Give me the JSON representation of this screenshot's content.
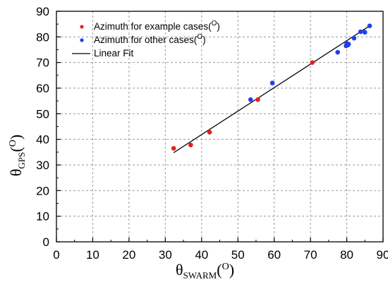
{
  "chart_data": {
    "type": "scatter",
    "xlim": [
      0,
      90
    ],
    "ylim": [
      0,
      90
    ],
    "x_ticks": [
      0,
      10,
      20,
      30,
      40,
      50,
      60,
      70,
      80,
      90
    ],
    "y_ticks": [
      0,
      10,
      20,
      30,
      40,
      50,
      60,
      70,
      80,
      90
    ],
    "x_tick_labels": [
      "0",
      "10",
      "20",
      "30",
      "40",
      "50",
      "60",
      "70",
      "80",
      "90"
    ],
    "y_tick_labels": [
      "0",
      "10",
      "20",
      "30",
      "40",
      "50",
      "60",
      "70",
      "80",
      "90"
    ],
    "grid": "dashed",
    "legend_position": "top-left",
    "xlabel": {
      "symbol": "θ",
      "subscript": "SWARM",
      "unit_open": "(",
      "unit_symbol": "O",
      "unit_close": ")"
    },
    "ylabel": {
      "symbol": "θ",
      "subscript": "GPS",
      "unit_open": "(",
      "unit_symbol": "O",
      "unit_close": ")"
    },
    "series": [
      {
        "name": "Azimuth for example cases(",
        "name_sup": "O",
        "name_end": ")",
        "kind": "points",
        "color": "#e8201c",
        "points": [
          [
            32.3,
            36.5
          ],
          [
            37.0,
            37.8
          ],
          [
            42.2,
            42.8
          ],
          [
            55.5,
            55.5
          ],
          [
            70.5,
            70.0
          ]
        ]
      },
      {
        "name": "Azimuth for other cases(",
        "name_sup": "O",
        "name_end": ")",
        "kind": "points",
        "color": "#1f3ff0",
        "points": [
          [
            53.5,
            55.5
          ],
          [
            59.5,
            62.0
          ],
          [
            77.5,
            74.0
          ],
          [
            79.8,
            76.5
          ],
          [
            80.0,
            77.5
          ],
          [
            80.3,
            76.8
          ],
          [
            80.5,
            77.2
          ],
          [
            82.0,
            79.5
          ],
          [
            83.8,
            82.0
          ],
          [
            85.0,
            81.8
          ],
          [
            86.3,
            84.3
          ]
        ]
      },
      {
        "name": "Linear Fit",
        "kind": "line",
        "color": "#000000",
        "points": [
          [
            32.3,
            34.8
          ],
          [
            86.3,
            84.3
          ]
        ]
      }
    ]
  }
}
